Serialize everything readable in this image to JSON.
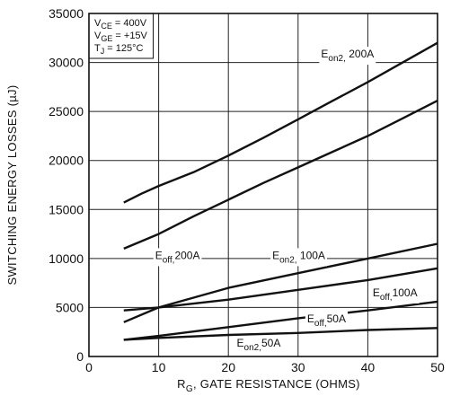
{
  "chart_data": {
    "type": "line",
    "title": "",
    "xlabel": {
      "main": "R",
      "sub": "G",
      "rest": ", GATE  RESISTANCE (OHMS)"
    },
    "ylabel": "SWITCHING  ENERGY  LOSSES (µJ)",
    "xlim": [
      0,
      50
    ],
    "ylim": [
      0,
      35000
    ],
    "xticks": [
      0,
      10,
      20,
      30,
      40,
      50
    ],
    "yticks": [
      0,
      5000,
      10000,
      15000,
      20000,
      25000,
      30000,
      35000
    ],
    "grid": true,
    "conditions": [
      {
        "main": "V",
        "sub": "CE",
        "rest": " = 400V"
      },
      {
        "main": "V",
        "sub": "GE",
        "rest": " = +15V"
      },
      {
        "main": "T",
        "sub": "J",
        "rest": " = 125°C"
      }
    ],
    "series": [
      {
        "name": "E_on2, 200A",
        "x": [
          5,
          7.5,
          10,
          15,
          20,
          25,
          30,
          35,
          40,
          45,
          50
        ],
        "y": [
          15700,
          16600,
          17400,
          18800,
          20500,
          22300,
          24200,
          26100,
          28000,
          30000,
          32000
        ]
      },
      {
        "series_label": "upper-unlabeled",
        "x": [
          5,
          10,
          15,
          20,
          25,
          30,
          35,
          40,
          45,
          50
        ],
        "y": [
          11000,
          12500,
          14300,
          16000,
          17700,
          19300,
          20900,
          22500,
          24300,
          26100
        ]
      },
      {
        "name": "E_on2, 100A",
        "x": [
          5,
          10,
          20,
          30,
          40,
          50
        ],
        "y": [
          3500,
          5000,
          7000,
          8500,
          10000,
          11500
        ]
      },
      {
        "name": "E_off, 200A",
        "x": [
          5,
          10,
          20,
          30,
          40,
          50
        ],
        "y": [
          4700,
          5000,
          5800,
          6800,
          7800,
          9000
        ]
      },
      {
        "name": "E_off, 50A",
        "x": [
          5,
          10,
          20,
          30,
          40,
          50
        ],
        "y": [
          1700,
          2100,
          3000,
          3900,
          4700,
          5600
        ]
      },
      {
        "name": "E_on2, 50A",
        "x": [
          5,
          10,
          20,
          30,
          40,
          50
        ],
        "y": [
          1700,
          1900,
          2200,
          2400,
          2700,
          2900
        ]
      }
    ],
    "annotations": [
      {
        "main": "E",
        "sub": "on2,",
        "rest": " 200A",
        "x": 33.3,
        "y": 30500
      },
      {
        "main": "E",
        "sub": "off,",
        "rest": "200A",
        "x": 9.5,
        "y": 9950
      },
      {
        "main": "E",
        "sub": "on2,",
        "rest": " 100A",
        "x": 26.3,
        "y": 9950
      },
      {
        "main": "E",
        "sub": "off,",
        "rest": "100A",
        "x": 40.7,
        "y": 6150
      },
      {
        "main": "E",
        "sub": "off,",
        "rest": "50A",
        "x": 31.3,
        "y": 3500
      },
      {
        "main": "E",
        "sub": "on2,",
        "rest": "50A",
        "x": 21.2,
        "y": 1000
      }
    ]
  }
}
